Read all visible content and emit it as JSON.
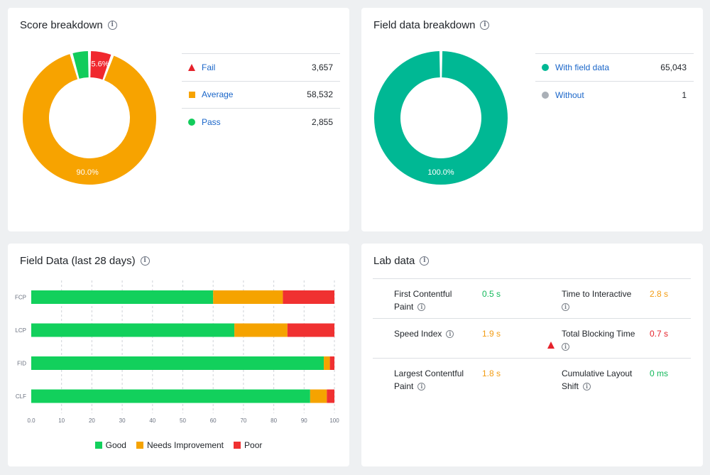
{
  "score_breakdown": {
    "title": "Score breakdown",
    "colors": {
      "fail": "#f0282e",
      "average": "#f7a300",
      "pass": "#12cc5b"
    },
    "rows": [
      {
        "label": "Fail",
        "value": "3,657",
        "marker": "triangle",
        "color": "#e5222b"
      },
      {
        "label": "Average",
        "value": "58,532",
        "marker": "square",
        "color": "#f7a300"
      },
      {
        "label": "Pass",
        "value": "2,855",
        "marker": "circle",
        "color": "#12cc5b"
      }
    ],
    "donut_labels": {
      "fail": "5.6%",
      "average": "90.0%"
    },
    "percentages": {
      "fail": 5.6,
      "average": 90.0,
      "pass": 4.4
    }
  },
  "field_data_breakdown": {
    "title": "Field data breakdown",
    "rows": [
      {
        "label": "With field data",
        "value": "65,043",
        "marker": "circle",
        "color": "#00b894"
      },
      {
        "label": "Without",
        "value": "1",
        "marker": "circle",
        "color": "#aab0b7"
      }
    ],
    "donut_label": "100.0%",
    "color": "#00b894"
  },
  "field_data_chart_card": {
    "title": "Field Data (last 28 days)"
  },
  "chart_data": {
    "type": "bar",
    "orientation": "horizontal",
    "stacked": true,
    "categories": [
      "FCP",
      "LCP",
      "FID",
      "CLF"
    ],
    "series": [
      {
        "name": "Good",
        "color": "#12d05c",
        "values": [
          60,
          67,
          96.5,
          92
        ]
      },
      {
        "name": "Needs Improvement",
        "color": "#f5a300",
        "values": [
          23,
          17.5,
          2,
          5.5
        ]
      },
      {
        "name": "Poor",
        "color": "#f03131",
        "values": [
          17,
          15.5,
          1.5,
          2.5
        ]
      }
    ],
    "xlim": [
      0,
      100
    ],
    "xticks": [
      "0.0",
      "10",
      "20",
      "30",
      "40",
      "50",
      "60",
      "70",
      "80",
      "90",
      "100"
    ],
    "grid": true,
    "legend_position": "bottom"
  },
  "lab_data": {
    "title": "Lab data",
    "rows": [
      [
        {
          "name_line1": "First Contentful",
          "name_line2": "Paint",
          "value": "0.5 s",
          "marker": "circle",
          "color": "#12cc5b",
          "value_color": "#12b85a"
        },
        {
          "name_line1": "Time to Interactive",
          "name_line2": "",
          "value": "2.8 s",
          "marker": "square",
          "color": "#f7a300",
          "value_color": "#f39c12"
        }
      ],
      [
        {
          "name_line1": "Speed Index",
          "name_line2": "",
          "value": "1.9 s",
          "marker": "square",
          "color": "#f7a300",
          "value_color": "#f39c12"
        },
        {
          "name_line1": "Total Blocking Time",
          "name_line2": "",
          "value": "0.7 s",
          "marker": "triangle",
          "color": "#e5222b",
          "value_color": "#e5222b"
        }
      ],
      [
        {
          "name_line1": "Largest Contentful",
          "name_line2": "Paint",
          "value": "1.8 s",
          "marker": "square",
          "color": "#f7a300",
          "value_color": "#f39c12"
        },
        {
          "name_line1": "Cumulative Layout",
          "name_line2": "Shift",
          "value": "0 ms",
          "marker": "circle",
          "color": "#12cc5b",
          "value_color": "#12b85a"
        }
      ]
    ]
  }
}
